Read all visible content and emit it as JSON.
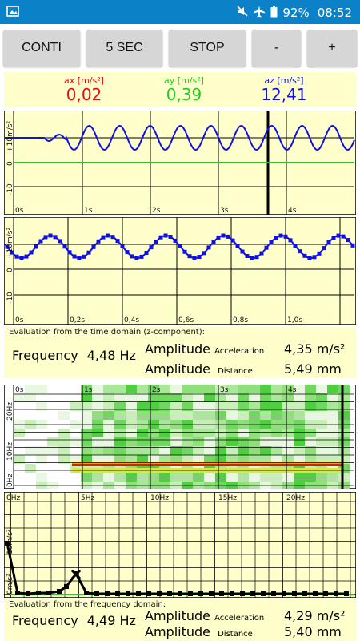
{
  "status_bar": {
    "battery_percent": "92%",
    "time": "08:52",
    "icons": [
      "image-icon",
      "mute-icon",
      "airplane-icon",
      "battery-icon"
    ]
  },
  "toolbar": {
    "conti_label": "CONTI",
    "duration_label": "5 SEC",
    "stop_label": "STOP",
    "minus_label": "-",
    "plus_label": "+"
  },
  "readings": {
    "ax": {
      "label": "ax [m/s²]",
      "value": "0,02",
      "color": "#e01010"
    },
    "ay": {
      "label": "ay [m/s²]",
      "value": "0,39",
      "color": "#22cc22"
    },
    "az": {
      "label": "az [m/s²]",
      "value": "12,41",
      "color": "#1010e0"
    }
  },
  "time_graph": {
    "ticks": [
      "0s",
      "1s",
      "2s",
      "3s",
      "4s"
    ],
    "y_labels": [
      "+10m/s²",
      "0",
      "-10"
    ]
  },
  "zoom_graph": {
    "ticks": [
      "0s",
      "0,2s",
      "0,4s",
      "0,6s",
      "0,8s",
      "1,0s"
    ],
    "y_labels": [
      "+10m/s²",
      "0",
      "-10"
    ]
  },
  "time_eval": {
    "title": "Evaluation from the time domain (z-component):",
    "frequency_label": "Frequency",
    "frequency_value": "4,48 Hz",
    "amplitude_label": "Amplitude",
    "acceleration_label": "Acceleration",
    "acceleration_value": "4,35 m/s²",
    "distance_label": "Distance",
    "distance_value": "5,49 mm"
  },
  "spectrogram": {
    "time_ticks": [
      "0s",
      "1s",
      "2s",
      "3s",
      "4s"
    ],
    "y_labels": [
      "20Hz",
      "10Hz",
      "0Hz"
    ]
  },
  "spectrum": {
    "x_ticks": [
      "0Hz",
      "5Hz",
      "10Hz",
      "15Hz",
      "20Hz"
    ],
    "y_labels": [
      "10m/s²",
      "0m/s²"
    ]
  },
  "freq_eval": {
    "title": "Evaluation from the frequency domain:",
    "frequency_label": "Frequency",
    "frequency_value": "4,49 Hz",
    "amplitude_label": "Amplitude",
    "acceleration_label": "Acceleration",
    "acceleration_value": "4,29 m/s²",
    "distance_label": "Distance",
    "distance_value": "5,40 mm"
  }
}
